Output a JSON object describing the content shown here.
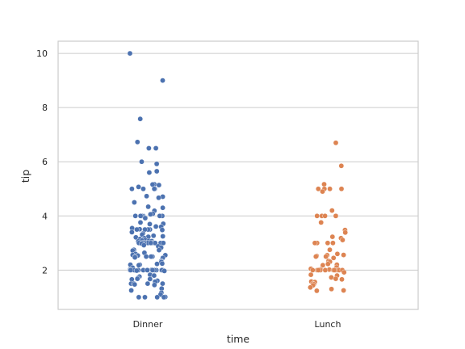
{
  "chart_data": {
    "type": "scatter",
    "style": "strip-plot",
    "title": "",
    "xlabel": "time",
    "ylabel": "tip",
    "categories": [
      "Dinner",
      "Lunch"
    ],
    "ylim": [
      0.55,
      10.45
    ],
    "yticks": [
      2,
      4,
      6,
      8,
      10
    ],
    "grid": "horizontal",
    "legend": "none",
    "colors": {
      "Dinner": "#4c72b0",
      "Lunch": "#dd8452",
      "grid": "#cccccc",
      "frame": "#cccccc"
    },
    "series": [
      {
        "category": "Dinner",
        "values": [
          10,
          9,
          7.58,
          6.73,
          6.5,
          6.5,
          6,
          5.92,
          5.65,
          5.6,
          5.17,
          5.16,
          5.14,
          5.07,
          5,
          5,
          5,
          5,
          5,
          4.73,
          4.71,
          4.67,
          4.5,
          4.34,
          4.3,
          4.19,
          4.08,
          4.06,
          4,
          4,
          4,
          4,
          4,
          4,
          4,
          4,
          3.92,
          3.76,
          3.71,
          3.7,
          3.61,
          3.6,
          3.55,
          3.51,
          3.5,
          3.5,
          3.5,
          3.5,
          3.48,
          3.4,
          3.35,
          3.31,
          3.27,
          3.25,
          3.23,
          3.21,
          3.18,
          3.15,
          3.12,
          3.11,
          3.09,
          3.08,
          3.07,
          3.06,
          3,
          3,
          3,
          3,
          3,
          3,
          3,
          3,
          3,
          3,
          3,
          3,
          3,
          3,
          2.98,
          2.92,
          2.88,
          2.83,
          2.75,
          2.74,
          2.72,
          2.64,
          2.6,
          2.56,
          2.55,
          2.54,
          2.5,
          2.5,
          2.5,
          2.5,
          2.47,
          2.45,
          2.34,
          2.31,
          2.3,
          2.24,
          2.23,
          2.2,
          2.2,
          2.18,
          2.09,
          2.03,
          2.01,
          2,
          2,
          2,
          2,
          2,
          2,
          2,
          2,
          2,
          2,
          2,
          2,
          2,
          2,
          2,
          2,
          2,
          1.98,
          1.97,
          1.83,
          1.8,
          1.76,
          1.71,
          1.68,
          1.67,
          1.66,
          1.61,
          1.58,
          1.57,
          1.5,
          1.5,
          1.5,
          1.5,
          1.47,
          1.45,
          1.32,
          1.25,
          1.17,
          1.1,
          1.01,
          1,
          1,
          1,
          1
        ]
      },
      {
        "category": "Lunch",
        "values": [
          6.7,
          5.85,
          5.17,
          5,
          5,
          5,
          5,
          4.9,
          4.2,
          4,
          4,
          4,
          4,
          4,
          3.76,
          3.48,
          3.39,
          3.23,
          3.18,
          3.11,
          3,
          3,
          3,
          3,
          2.75,
          2.6,
          2.56,
          2.55,
          2.52,
          2.5,
          2.5,
          2.45,
          2.34,
          2.31,
          2.23,
          2.2,
          2.18,
          2.1,
          2.05,
          2.03,
          2.02,
          2,
          2,
          2,
          2,
          2,
          2,
          2,
          2,
          2,
          2,
          2,
          2,
          1.92,
          1.83,
          1.8,
          1.73,
          1.68,
          1.66,
          1.58,
          1.56,
          1.5,
          1.48,
          1.44,
          1.36,
          1.3,
          1.25,
          1.24
        ]
      }
    ]
  }
}
